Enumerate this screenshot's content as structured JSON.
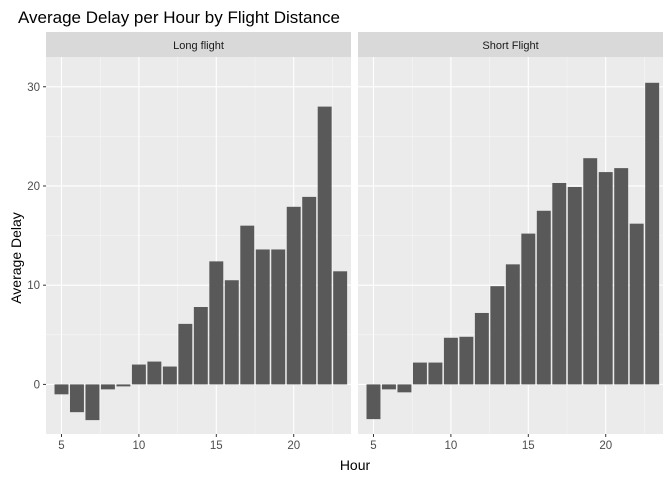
{
  "chart_data": {
    "type": "bar",
    "title": "Average Delay per Hour by Flight Distance",
    "xlabel": "Hour",
    "ylabel": "Average Delay",
    "ylim": [
      -5,
      33
    ],
    "xlim": [
      4,
      23.7
    ],
    "x_ticks": [
      5,
      10,
      15,
      20
    ],
    "y_ticks": [
      0,
      10,
      20,
      30
    ],
    "grid": true,
    "colors": {
      "bar": "#595959",
      "panel": "#ebebeb",
      "strip": "#d9d9d9",
      "grid_major": "#ffffff"
    },
    "panels": [
      {
        "label": "Long flight",
        "x": [
          5,
          6,
          7,
          8,
          9,
          10,
          11,
          12,
          13,
          14,
          15,
          16,
          17,
          18,
          19,
          20,
          21,
          22,
          23
        ],
        "values": [
          -1.0,
          -2.8,
          -3.6,
          -0.5,
          -0.2,
          2.0,
          2.3,
          1.8,
          6.1,
          7.8,
          12.4,
          10.5,
          16.0,
          13.6,
          13.6,
          17.9,
          18.9,
          28.0,
          11.4
        ]
      },
      {
        "label": "Short Flight",
        "x": [
          5,
          6,
          7,
          8,
          9,
          10,
          11,
          12,
          13,
          14,
          15,
          16,
          17,
          18,
          19,
          20,
          21,
          22,
          23
        ],
        "values": [
          -3.5,
          -0.5,
          -0.8,
          2.2,
          2.2,
          4.7,
          4.8,
          7.2,
          9.9,
          12.1,
          15.2,
          17.5,
          20.3,
          19.9,
          22.8,
          21.4,
          21.8,
          16.2,
          30.4
        ]
      }
    ]
  }
}
